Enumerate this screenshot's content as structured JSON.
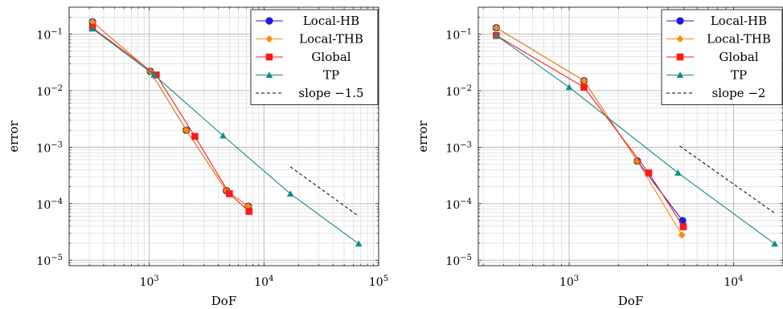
{
  "chart_data": [
    {
      "type": "line",
      "xscale": "log",
      "yscale": "log",
      "xlabel": "DoF",
      "ylabel": "error",
      "xlim": [
        200,
        100000
      ],
      "ylim": [
        8e-06,
        0.3
      ],
      "x_ticks": [
        {
          "value": 1000,
          "base": "10",
          "exp": "3"
        },
        {
          "value": 10000,
          "base": "10",
          "exp": "4"
        },
        {
          "value": 100000,
          "base": "10",
          "exp": "5"
        }
      ],
      "y_ticks": [
        {
          "value": 1e-05,
          "base": "10",
          "exp": "−5"
        },
        {
          "value": 0.0001,
          "base": "10",
          "exp": "−4"
        },
        {
          "value": 0.001,
          "base": "10",
          "exp": "−3"
        },
        {
          "value": 0.01,
          "base": "10",
          "exp": "−2"
        },
        {
          "value": 0.1,
          "base": "10",
          "exp": "−1"
        }
      ],
      "grid": true,
      "legend_position": "top-right",
      "series": [
        {
          "name": "Local-HB",
          "color": "#1a1aff",
          "marker": "circle",
          "x": [
            320,
            1020,
            2100,
            4700,
            7300
          ],
          "y": [
            0.165,
            0.022,
            0.002,
            0.00017,
            9e-05
          ]
        },
        {
          "name": "Local-THB",
          "color": "#ff8c00",
          "marker": "diamond",
          "x": [
            320,
            1020,
            2100,
            4700,
            7300
          ],
          "y": [
            0.165,
            0.022,
            0.002,
            0.00017,
            9e-05
          ]
        },
        {
          "name": "Global",
          "color": "#ff1a1a",
          "marker": "square",
          "x": [
            320,
            1150,
            2500,
            5000,
            7400
          ],
          "y": [
            0.13,
            0.019,
            0.00155,
            0.00015,
            7.3e-05
          ]
        },
        {
          "name": "TP",
          "color": "#138a8a",
          "marker": "triangle",
          "x": [
            320,
            1100,
            4400,
            17000,
            67000
          ],
          "y": [
            0.125,
            0.019,
            0.0016,
            0.00015,
            1.95e-05
          ]
        }
      ],
      "slope_line": {
        "name": "slope −1.5",
        "x": [
          17000,
          67000
        ],
        "y": [
          0.00045,
          6e-05
        ]
      }
    },
    {
      "type": "line",
      "xscale": "log",
      "yscale": "log",
      "xlabel": "DoF",
      "ylabel": "error",
      "xlim": [
        280,
        20000
      ],
      "ylim": [
        8e-06,
        0.3
      ],
      "x_ticks": [
        {
          "value": 1000,
          "base": "10",
          "exp": "3"
        },
        {
          "value": 10000,
          "base": "10",
          "exp": "4"
        }
      ],
      "y_ticks": [
        {
          "value": 1e-05,
          "base": "10",
          "exp": "−5"
        },
        {
          "value": 0.0001,
          "base": "10",
          "exp": "−4"
        },
        {
          "value": 0.001,
          "base": "10",
          "exp": "−3"
        },
        {
          "value": 0.01,
          "base": "10",
          "exp": "−2"
        },
        {
          "value": 0.1,
          "base": "10",
          "exp": "−1"
        }
      ],
      "grid": true,
      "legend_position": "top-right",
      "series": [
        {
          "name": "Local-HB",
          "color": "#1a1aff",
          "marker": "circle",
          "x": [
            360,
            1230,
            2600,
            4900
          ],
          "y": [
            0.13,
            0.015,
            0.00057,
            5e-05
          ]
        },
        {
          "name": "Local-THB",
          "color": "#ff8c00",
          "marker": "diamond",
          "x": [
            360,
            1230,
            2600,
            4850
          ],
          "y": [
            0.13,
            0.015,
            0.00057,
            2.8e-05
          ]
        },
        {
          "name": "Global",
          "color": "#ff1a1a",
          "marker": "square",
          "x": [
            360,
            1230,
            3050,
            4950
          ],
          "y": [
            0.095,
            0.0115,
            0.00035,
            3.9e-05
          ]
        },
        {
          "name": "TP",
          "color": "#138a8a",
          "marker": "triangle",
          "x": [
            360,
            1000,
            4600,
            17800
          ],
          "y": [
            0.095,
            0.0115,
            0.00035,
            1.95e-05
          ]
        }
      ],
      "slope_line": {
        "name": "slope −2",
        "x": [
          4700,
          17800
        ],
        "y": [
          0.00105,
          6.8e-05
        ]
      }
    }
  ]
}
